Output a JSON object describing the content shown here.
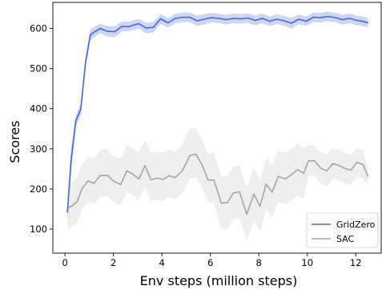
{
  "chart_data": {
    "type": "line",
    "title": "",
    "xlabel": "Env steps (million steps)",
    "ylabel": "Scores",
    "xlim": [
      -0.5,
      13.05
    ],
    "ylim": [
      40,
      665
    ],
    "xticks": [
      0,
      2,
      4,
      6,
      8,
      10,
      12
    ],
    "yticks": [
      100,
      200,
      300,
      400,
      500,
      600
    ],
    "grid": false,
    "legend_position": "bottom-right",
    "series": [
      {
        "name": "GridZero",
        "color": "#4466dd",
        "band_color": "#cdd7f4",
        "x": [
          0.1,
          0.25,
          0.45,
          0.65,
          0.85,
          1.05,
          1.45,
          1.75,
          2.05,
          2.35,
          2.65,
          3.05,
          3.35,
          3.65,
          3.95,
          4.25,
          4.55,
          4.85,
          5.15,
          5.45,
          5.75,
          6.05,
          6.35,
          6.65,
          6.95,
          7.25,
          7.55,
          7.85,
          8.15,
          8.45,
          8.75,
          9.05,
          9.35,
          9.65,
          9.95,
          10.25,
          10.55,
          10.85,
          11.15,
          11.45,
          11.75,
          12.05,
          12.35,
          12.5
        ],
        "y": [
          142,
          270,
          370,
          398,
          515,
          585,
          600,
          593,
          592,
          605,
          605,
          612,
          601,
          603,
          624,
          614,
          625,
          628,
          628,
          619,
          623,
          627,
          625,
          622,
          625,
          624,
          626,
          620,
          625,
          618,
          623,
          619,
          613,
          623,
          618,
          628,
          627,
          630,
          627,
          622,
          625,
          620,
          617,
          614
        ],
        "upper": [
          158,
          300,
          385,
          413,
          528,
          598,
          612,
          606,
          606,
          617,
          617,
          624,
          614,
          616,
          636,
          626,
          637,
          640,
          640,
          632,
          636,
          639,
          637,
          634,
          637,
          636,
          638,
          632,
          637,
          630,
          635,
          631,
          626,
          635,
          630,
          640,
          639,
          642,
          639,
          634,
          637,
          632,
          629,
          626
        ],
        "lower": [
          127,
          240,
          355,
          383,
          502,
          572,
          588,
          580,
          578,
          593,
          593,
          600,
          588,
          590,
          612,
          602,
          613,
          616,
          616,
          606,
          610,
          615,
          613,
          610,
          613,
          612,
          614,
          608,
          613,
          606,
          611,
          607,
          600,
          611,
          606,
          616,
          615,
          618,
          615,
          610,
          613,
          608,
          605,
          602
        ]
      },
      {
        "name": "SAC",
        "color": "#a5a5a5",
        "band_color": "#eeeeee",
        "x": [
          0.1,
          0.3,
          0.5,
          0.7,
          0.95,
          1.2,
          1.45,
          1.75,
          2.0,
          2.3,
          2.55,
          2.8,
          3.05,
          3.3,
          3.55,
          3.8,
          4.05,
          4.3,
          4.55,
          4.85,
          5.15,
          5.4,
          5.65,
          5.9,
          6.15,
          6.45,
          6.7,
          6.95,
          7.2,
          7.5,
          7.8,
          8.05,
          8.3,
          8.55,
          8.8,
          9.1,
          9.35,
          9.6,
          9.85,
          10.05,
          10.3,
          10.55,
          10.8,
          11.05,
          11.3,
          11.55,
          11.8,
          12.05,
          12.3,
          12.5
        ],
        "y": [
          152,
          158,
          168,
          200,
          220,
          214,
          233,
          234,
          220,
          211,
          245,
          237,
          225,
          258,
          223,
          227,
          224,
          233,
          228,
          246,
          283,
          287,
          261,
          223,
          222,
          165,
          166,
          190,
          193,
          137,
          187,
          157,
          212,
          192,
          231,
          225,
          236,
          248,
          239,
          270,
          270,
          252,
          245,
          263,
          259,
          251,
          247,
          266,
          261,
          232
        ],
        "upper": [
          212,
          218,
          228,
          260,
          280,
          275,
          298,
          300,
          280,
          275,
          310,
          300,
          292,
          322,
          290,
          292,
          290,
          298,
          292,
          312,
          350,
          352,
          325,
          288,
          290,
          230,
          232,
          256,
          258,
          205,
          252,
          222,
          278,
          258,
          295,
          290,
          300,
          312,
          302,
          310,
          308,
          292,
          285,
          300,
          298,
          290,
          285,
          302,
          296,
          255
        ],
        "lower": [
          100,
          106,
          116,
          148,
          168,
          162,
          180,
          182,
          168,
          158,
          192,
          184,
          172,
          205,
          168,
          172,
          170,
          180,
          175,
          190,
          225,
          228,
          205,
          168,
          165,
          100,
          100,
          125,
          128,
          72,
          122,
          92,
          148,
          128,
          168,
          162,
          172,
          184,
          176,
          232,
          232,
          214,
          206,
          226,
          222,
          214,
          210,
          230,
          227,
          208
        ]
      }
    ]
  }
}
